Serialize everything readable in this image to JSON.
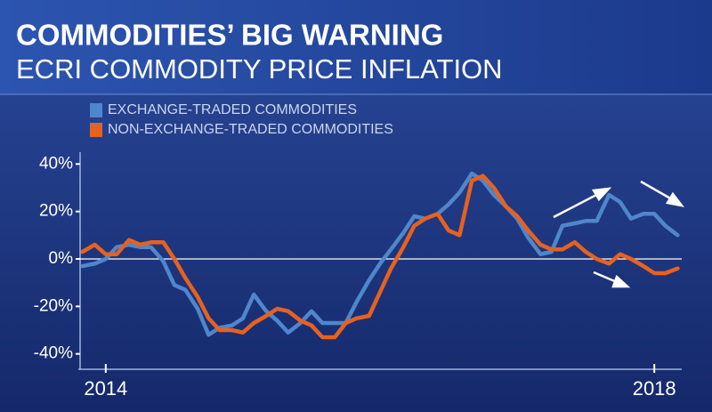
{
  "chart_data": {
    "type": "line",
    "title": "COMMODITIES’ BIG WARNING",
    "subtitle": "ECRI COMMODITY PRICE INFLATION",
    "x": [
      2013.83,
      2013.92,
      2014.0,
      2014.08,
      2014.17,
      2014.25,
      2014.33,
      2014.42,
      2014.5,
      2014.58,
      2014.67,
      2014.75,
      2014.83,
      2014.92,
      2015.0,
      2015.08,
      2015.17,
      2015.25,
      2015.33,
      2015.42,
      2015.5,
      2015.58,
      2015.67,
      2015.75,
      2015.83,
      2015.92,
      2016.0,
      2016.08,
      2016.17,
      2016.25,
      2016.33,
      2016.42,
      2016.5,
      2016.58,
      2016.67,
      2016.75,
      2016.83,
      2016.92,
      2017.0,
      2017.08,
      2017.17,
      2017.25,
      2017.33,
      2017.42,
      2017.5,
      2017.58,
      2017.67,
      2017.75,
      2017.83,
      2017.92,
      2018.0,
      2018.08,
      2018.17
    ],
    "series": [
      {
        "name": "EXCHANGE-TRADED COMMODITIES",
        "color": "#4f86cc",
        "values": [
          -3,
          -2,
          0,
          5,
          6,
          5,
          5,
          -1,
          -11,
          -13,
          -21,
          -32,
          -29,
          -28,
          -25,
          -15,
          -22,
          -26,
          -31,
          -27,
          -22,
          -27,
          -27,
          -27,
          -18,
          -9,
          -2,
          4,
          11,
          18,
          17,
          19,
          23,
          28,
          36,
          33,
          27,
          22,
          17,
          9,
          2,
          3,
          14,
          15,
          16,
          16,
          27,
          24,
          17,
          19,
          19,
          14,
          10
        ]
      },
      {
        "name": "NON-EXCHANGE-TRADED COMMODITIES",
        "color": "#e8611e",
        "values": [
          3,
          6,
          2,
          2,
          8,
          6,
          7,
          7,
          0,
          -8,
          -16,
          -25,
          -30,
          -30,
          -31,
          -27,
          -24,
          -21,
          -22,
          -26,
          -28,
          -33,
          -33,
          -27,
          -25,
          -24,
          -14,
          -4,
          5,
          14,
          17,
          19,
          12,
          10,
          33,
          35,
          30,
          22,
          18,
          12,
          6,
          4,
          4,
          7,
          3,
          0,
          -2,
          2,
          0,
          -3,
          -6,
          -6,
          -4
        ]
      }
    ],
    "xlim": [
      2013.8,
      2018.2
    ],
    "xticks": [
      2014,
      2018
    ],
    "ylim": [
      -45,
      45
    ],
    "yticks": [
      {
        "value": -40,
        "label": "-40%"
      },
      {
        "value": -20,
        "label": "-20%"
      },
      {
        "value": 0,
        "label": "0%"
      },
      {
        "value": 20,
        "label": "20%"
      },
      {
        "value": 40,
        "label": "40%"
      }
    ],
    "zero_line": true
  }
}
